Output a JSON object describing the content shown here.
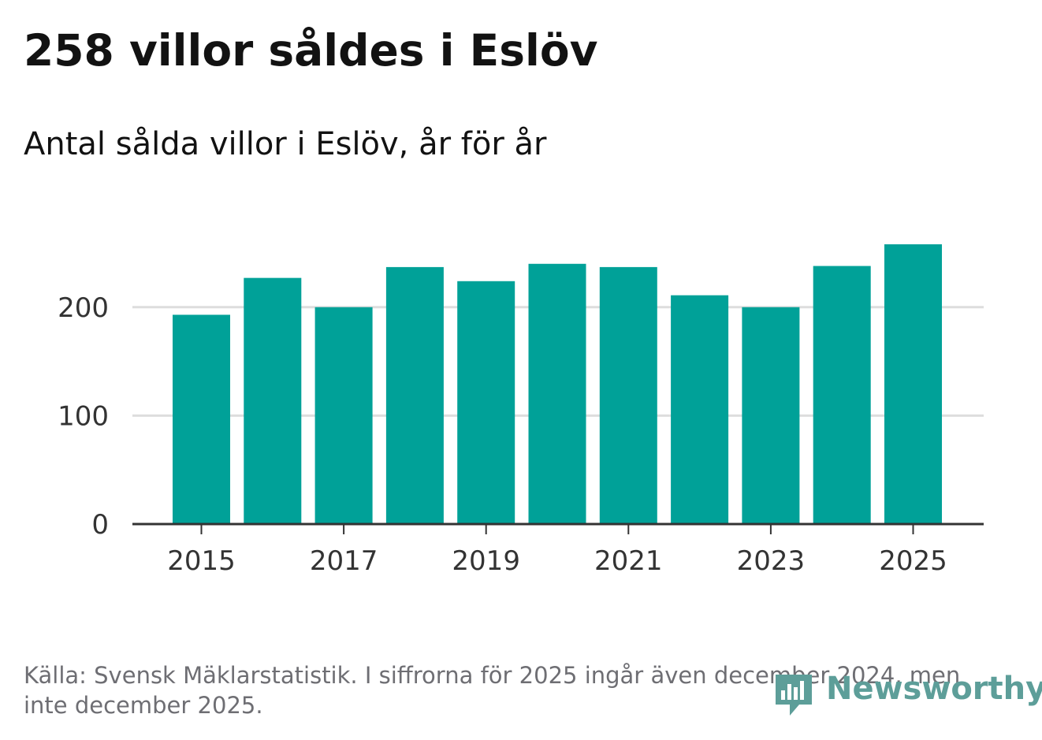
{
  "title": "258 villor såldes i Eslöv",
  "subtitle": "Antal sålda villor i Eslöv, år för år",
  "source": "Källa: Svensk Mäklarstatistik. I siffrorna för 2025 ingår även december 2024, men inte december 2025.",
  "brand": {
    "name": "Newsworthy",
    "color": "#5d9e99"
  },
  "colors": {
    "bar": "#00a198",
    "grid": "#dddddd",
    "axis": "#333333"
  },
  "chart_data": {
    "type": "bar",
    "title": "258 villor såldes i Eslöv",
    "subtitle": "Antal sålda villor i Eslöv, år för år",
    "xlabel": "",
    "ylabel": "",
    "categories": [
      "2015",
      "2016",
      "2017",
      "2018",
      "2019",
      "2020",
      "2021",
      "2022",
      "2023",
      "2024",
      "2025"
    ],
    "values": [
      193,
      227,
      200,
      237,
      224,
      240,
      237,
      211,
      200,
      238,
      258
    ],
    "ylim": [
      0,
      258
    ],
    "yticks": [
      0,
      100,
      200
    ],
    "xtick_labels": [
      "2015",
      "2017",
      "2019",
      "2021",
      "2023",
      "2025"
    ],
    "grid": true,
    "legend": "none"
  }
}
